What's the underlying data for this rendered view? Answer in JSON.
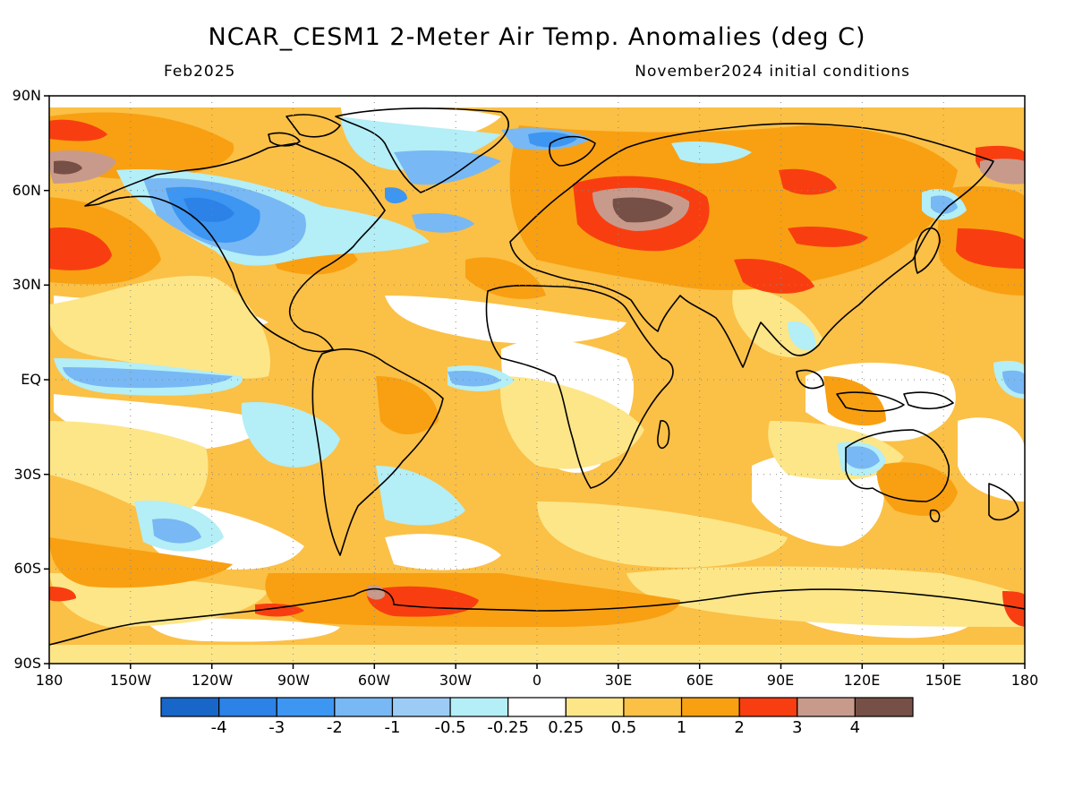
{
  "title": "NCAR_CESM1 2-Meter Air Temp. Anomalies (deg C)",
  "subtitle_left": "Feb2025",
  "subtitle_right": "November2024 initial conditions",
  "lat_labels": [
    "90N",
    "60N",
    "30N",
    "EQ",
    "30S",
    "60S",
    "90S"
  ],
  "lon_labels": [
    "180",
    "150W",
    "120W",
    "90W",
    "60W",
    "30W",
    "0",
    "30E",
    "60E",
    "90E",
    "120E",
    "150E",
    "180"
  ],
  "colorbar": {
    "labels": [
      "-4",
      "-3",
      "-2",
      "-1",
      "-0.5",
      "-0.25",
      "0.25",
      "0.5",
      "1",
      "2",
      "3",
      "4"
    ],
    "colors": [
      "#1866c8",
      "#2c82e6",
      "#3c96f2",
      "#78b8f4",
      "#9cccf6",
      "#b4eef6",
      "#ffffff",
      "#fde688",
      "#fbc046",
      "#f8a012",
      "#f83e10",
      "#c89a8c",
      "#765046"
    ]
  },
  "map_colors": {
    "ocean_base": "#fde688",
    "warm": "#fbc046",
    "warmer": "#f8a012",
    "hot": "#f83e10",
    "very_hot": "#c89a8c",
    "extreme": "#765046",
    "neutral": "#ffffff",
    "cool": "#b4eef6",
    "cooler": "#9cccf6",
    "cold": "#78b8f4",
    "colder": "#3c96f2",
    "coldest": "#2c82e6",
    "coastline": "#000000"
  }
}
